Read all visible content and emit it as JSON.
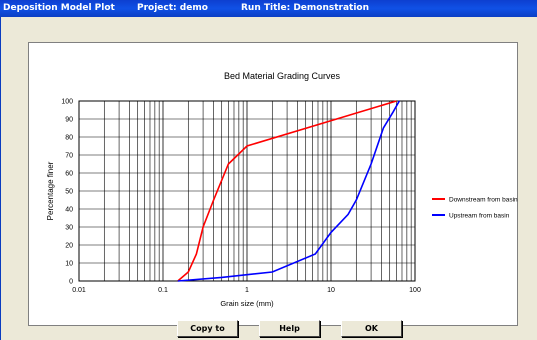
{
  "window": {
    "title": "Deposition Model Plot",
    "project": "Project: demo",
    "run_title": "Run Title: Demonstration"
  },
  "buttons": {
    "copy_label": "Copy to Excel",
    "help_label": "Help",
    "ok_label": "OK"
  },
  "chart_data": {
    "type": "line",
    "title": "Bed Material Grading Curves",
    "xlabel": "Grain size (mm)",
    "ylabel": "Percentage finer",
    "x_scale": "log",
    "xlim": [
      0.01,
      100
    ],
    "ylim": [
      0,
      100
    ],
    "x_ticks": [
      "0.01",
      "0.1",
      "1",
      "10",
      "100"
    ],
    "y_ticks": [
      "0",
      "10",
      "20",
      "30",
      "40",
      "50",
      "60",
      "70",
      "80",
      "90",
      "100"
    ],
    "grid": true,
    "legend_position": "right",
    "series": [
      {
        "name": "Downstream from basin",
        "color": "#ff0000",
        "points": [
          [
            0.15,
            0
          ],
          [
            0.2,
            5
          ],
          [
            0.25,
            15
          ],
          [
            0.3,
            30
          ],
          [
            0.4,
            45
          ],
          [
            0.6,
            65
          ],
          [
            1.0,
            75
          ],
          [
            60,
            100
          ]
        ]
      },
      {
        "name": "Upstream from basin",
        "color": "#0000ff",
        "points": [
          [
            0.15,
            0
          ],
          [
            0.5,
            2
          ],
          [
            2,
            5
          ],
          [
            6.5,
            15
          ],
          [
            10,
            27
          ],
          [
            16,
            37
          ],
          [
            20,
            45
          ],
          [
            30,
            65
          ],
          [
            42,
            85
          ],
          [
            55,
            94
          ],
          [
            65,
            100
          ]
        ]
      }
    ]
  }
}
